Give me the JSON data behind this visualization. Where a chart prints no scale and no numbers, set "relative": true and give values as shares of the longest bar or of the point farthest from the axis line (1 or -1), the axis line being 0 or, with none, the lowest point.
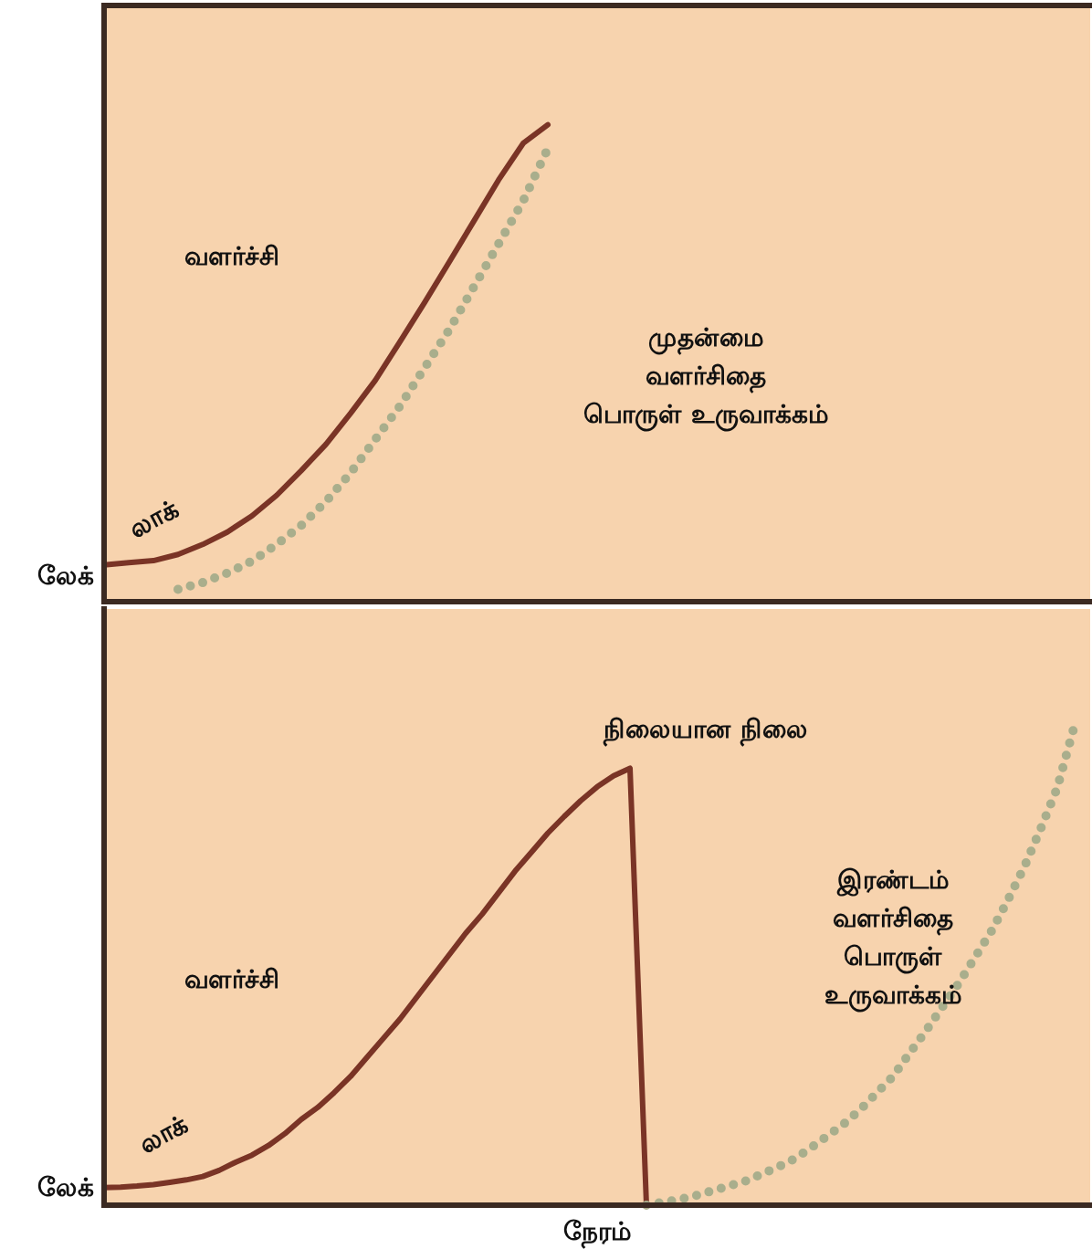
{
  "chart_data": [
    {
      "type": "line",
      "relative": true,
      "marker": "none",
      "categories": [
        null,
        null,
        null,
        null,
        null,
        null,
        null,
        null,
        null,
        null,
        null,
        null,
        null,
        null,
        null,
        null,
        null,
        null,
        null,
        null,
        null,
        null,
        null,
        null,
        null,
        null,
        null,
        null,
        null,
        null,
        null,
        null,
        null,
        null,
        null,
        null,
        null,
        null,
        null,
        null,
        null
      ],
      "series": [
        {
          "color": "#7a3426",
          "line_style": "solid",
          "values": [
            0.077,
            0.082,
            0.086,
            0.099,
            0.12,
            0.146,
            0.18,
            0.223,
            0.275,
            0.33,
            0.395,
            0.464,
            0.545,
            0.627,
            0.712,
            0.798,
            0.884,
            0.961,
            1,
            null,
            null,
            null,
            null,
            null,
            null,
            null,
            null,
            null,
            null,
            null,
            null,
            null,
            null,
            null,
            null,
            null,
            null,
            null,
            null,
            null,
            null
          ]
        },
        {
          "color": "#a9ae8c",
          "line_style": "dotted",
          "values": [
            null,
            null,
            null,
            0.026,
            0.04,
            0.06,
            0.085,
            0.12,
            0.16,
            0.21,
            0.27,
            0.34,
            0.41,
            0.49,
            0.57,
            0.66,
            0.75,
            0.84,
            0.95,
            null,
            null,
            null,
            null,
            null,
            null,
            null,
            null,
            null,
            null,
            null,
            null,
            null,
            null,
            null,
            null,
            null,
            null,
            null,
            null,
            null,
            null
          ]
        }
      ],
      "annotations": [
        "லேக்",
        "லாக்",
        "வளர்ச்சி",
        "முதன்மை\nவளர்சிதை\nபொருள் உருவாக்கம்"
      ]
    },
    {
      "type": "line",
      "relative": true,
      "marker": "none",
      "xlabel": "நேரம்",
      "categories": [
        null,
        null,
        null,
        null,
        null,
        null,
        null,
        null,
        null,
        null,
        null,
        null,
        null,
        null,
        null,
        null,
        null,
        null,
        null,
        null,
        null,
        null,
        null,
        null,
        null,
        null,
        null,
        null,
        null,
        null,
        null,
        null,
        null,
        null,
        null,
        null,
        null,
        null,
        null,
        null,
        null,
        null,
        null,
        null,
        null,
        null,
        null,
        null,
        null,
        null,
        null,
        null,
        null,
        null,
        null,
        null,
        null,
        null,
        null,
        null,
        null
      ],
      "series": [
        {
          "color": "#7a3426",
          "line_style": "solid",
          "values": [
            0.037,
            0.038,
            0.04,
            0.043,
            0.048,
            0.053,
            0.06,
            0.073,
            0.09,
            0.105,
            0.125,
            0.15,
            0.18,
            0.205,
            0.236,
            0.27,
            0.31,
            0.35,
            0.39,
            0.435,
            0.48,
            0.525,
            0.57,
            0.61,
            0.655,
            0.7,
            0.74,
            0.78,
            0.815,
            0.848,
            0.877,
            0.9,
            0.916,
            0,
            null,
            null,
            null,
            null,
            null,
            null,
            null,
            null,
            null,
            null,
            null,
            null,
            null,
            null,
            null,
            null,
            null,
            null,
            null,
            null,
            null,
            null,
            null,
            null,
            null,
            null,
            null
          ]
        },
        {
          "color": "#a9ae8c",
          "line_style": "dotted",
          "values": [
            null,
            null,
            null,
            null,
            null,
            null,
            null,
            null,
            null,
            null,
            null,
            null,
            null,
            null,
            null,
            null,
            null,
            null,
            null,
            null,
            null,
            null,
            null,
            null,
            null,
            null,
            null,
            null,
            null,
            null,
            null,
            null,
            null,
            0,
            0.006,
            0.012,
            0.02,
            0.03,
            0.04,
            0.05,
            0.065,
            0.08,
            0.097,
            0.12,
            0.145,
            0.17,
            0.2,
            0.235,
            0.27,
            0.318,
            0.365,
            0.415,
            0.465,
            0.52,
            0.575,
            0.64,
            0.71,
            0.79,
            0.875,
            1,
            null
          ]
        }
      ],
      "annotations": [
        "லேக்",
        "லாக்",
        "வளர்ச்சி",
        "நிலையான நிலை",
        "இரண்டம்\nவளர்சிதை\nபொருள்\nஉருவாக்கம்"
      ]
    }
  ]
}
